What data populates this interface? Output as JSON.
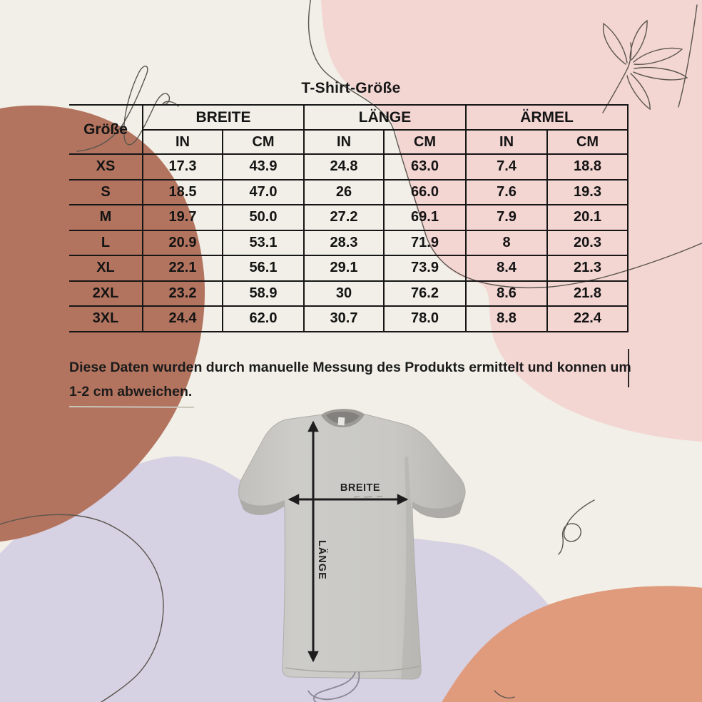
{
  "title": "T-Shirt-Größe",
  "table": {
    "size_column_header": "Größe",
    "groups": [
      {
        "label": "BREITE"
      },
      {
        "label": "LÄNGE"
      },
      {
        "label": "ÄRMEL"
      }
    ],
    "unit_headers": [
      "IN",
      "CM",
      "IN",
      "CM",
      "IN",
      "CM"
    ],
    "rows": [
      {
        "size": "XS",
        "values": [
          "17.3",
          "43.9",
          "24.8",
          "63.0",
          "7.4",
          "18.8"
        ]
      },
      {
        "size": "S",
        "values": [
          "18.5",
          "47.0",
          "26",
          "66.0",
          "7.6",
          "19.3"
        ]
      },
      {
        "size": "M",
        "values": [
          "19.7",
          "50.0",
          "27.2",
          "69.1",
          "7.9",
          "20.1"
        ]
      },
      {
        "size": "L",
        "values": [
          "20.9",
          "53.1",
          "28.3",
          "71.9",
          "8",
          "20.3"
        ]
      },
      {
        "size": "XL",
        "values": [
          "22.1",
          "56.1",
          "29.1",
          "73.9",
          "8.4",
          "21.3"
        ]
      },
      {
        "size": "2XL",
        "values": [
          "23.2",
          "58.9",
          "30",
          "76.2",
          "8.6",
          "21.8"
        ]
      },
      {
        "size": "3XL",
        "values": [
          "24.4",
          "62.0",
          "30.7",
          "78.0",
          "8.8",
          "22.4"
        ]
      }
    ]
  },
  "note": "Diese Daten wurden durch manuelle Messung des Produkts ermittelt und konnen um 1-2 cm abweichen.",
  "diagram": {
    "width_label": "BREITE",
    "length_label": "LÄNGE"
  },
  "colors": {
    "background": "#f1efe7",
    "pink_blob": "#f3d5d2",
    "terracotta_blob": "#b3745f",
    "lavender_blob": "#d6d1e3",
    "salmon_blob": "#e09b7c",
    "table_line": "#161616",
    "text": "#171717",
    "shirt_gray": "#c9c8c4",
    "line_art": "#5b554e"
  },
  "chart_data": {
    "type": "table",
    "title": "T-Shirt-Größe",
    "columns": [
      "Größe",
      "BREITE IN",
      "BREITE CM",
      "LÄNGE IN",
      "LÄNGE CM",
      "ÄRMEL IN",
      "ÄRMEL CM"
    ],
    "rows": [
      [
        "XS",
        17.3,
        43.9,
        24.8,
        63.0,
        7.4,
        18.8
      ],
      [
        "S",
        18.5,
        47.0,
        26,
        66.0,
        7.6,
        19.3
      ],
      [
        "M",
        19.7,
        50.0,
        27.2,
        69.1,
        7.9,
        20.1
      ],
      [
        "L",
        20.9,
        53.1,
        28.3,
        71.9,
        8,
        20.3
      ],
      [
        "XL",
        22.1,
        56.1,
        29.1,
        73.9,
        8.4,
        21.3
      ],
      [
        "2XL",
        23.2,
        58.9,
        30,
        76.2,
        8.6,
        21.8
      ],
      [
        "3XL",
        24.4,
        62.0,
        30.7,
        78.0,
        8.8,
        22.4
      ]
    ],
    "note": "Diese Daten wurden durch manuelle Messung des Produkts ermittelt und konnen um 1-2 cm abweichen."
  }
}
